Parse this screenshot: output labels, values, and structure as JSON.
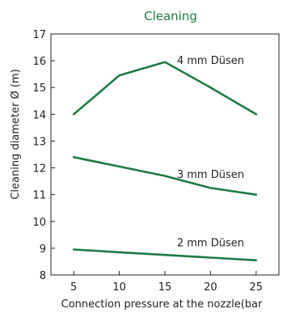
{
  "chart_data": {
    "type": "line",
    "title": "Cleaning",
    "xlabel": "Connection pressure at the nozzle(bar",
    "ylabel": "Cleaning diameter Ø (m)",
    "xlim": [
      2.5,
      27.5
    ],
    "ylim": [
      8,
      17
    ],
    "x_ticks": [
      5,
      10,
      15,
      20,
      25
    ],
    "y_ticks": [
      8,
      9,
      10,
      11,
      12,
      13,
      14,
      15,
      16,
      17
    ],
    "grid": false,
    "series": [
      {
        "name": "4 mm Düsen",
        "x": [
          5,
          10,
          15,
          20,
          25
        ],
        "y": [
          14.0,
          15.45,
          15.95,
          15.0,
          14.0
        ]
      },
      {
        "name": "3 mm Düsen",
        "x": [
          5,
          10,
          15,
          20,
          25
        ],
        "y": [
          12.4,
          12.05,
          11.7,
          11.25,
          11.0
        ]
      },
      {
        "name": "2 mm Düsen",
        "x": [
          5,
          10,
          15,
          20,
          25
        ],
        "y": [
          8.95,
          8.85,
          8.75,
          8.65,
          8.55
        ]
      }
    ],
    "colors": {
      "line": "#1f7a45",
      "title": "#1f7a45",
      "axis": "#222222"
    }
  }
}
